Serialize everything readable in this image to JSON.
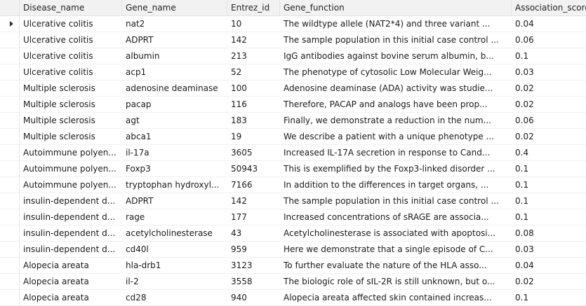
{
  "columns": [
    "Disease_name",
    "Gene_name",
    "Entrez_id",
    "Gene_function",
    "Association_score"
  ],
  "rows": [
    [
      "Ulcerative colitis",
      "nat2",
      "10",
      "The wildtype allele (NAT2*4) and three variant ...",
      "0.04"
    ],
    [
      "Ulcerative colitis",
      "ADPRT",
      "142",
      "The sample population in this initial case control ...",
      "0.06"
    ],
    [
      "Ulcerative colitis",
      "albumin",
      "213",
      "IgG antibodies against bovine serum albumin, b...",
      "0.1"
    ],
    [
      "Ulcerative colitis",
      "acp1",
      "52",
      "The phenotype of cytosolic Low Molecular Weig...",
      "0.03"
    ],
    [
      "Multiple sclerosis",
      "adenosine deaminase",
      "100",
      "Adenosine deaminase (ADA) activity was studie...",
      "0.02"
    ],
    [
      "Multiple sclerosis",
      "pacap",
      "116",
      "Therefore, PACAP and analogs have been prop...",
      "0.02"
    ],
    [
      "Multiple sclerosis",
      "agt",
      "183",
      "Finally, we demonstrate a reduction in the num...",
      "0.06"
    ],
    [
      "Multiple sclerosis",
      "abca1",
      "19",
      "We describe a patient with a unique phenotype ...",
      "0.02"
    ],
    [
      "Autoimmune polyen...",
      "il-17a",
      "3605",
      "Increased IL-17A secretion in response to Cand...",
      "0.4"
    ],
    [
      "Autoimmune polyen...",
      "Foxp3",
      "50943",
      "This is exemplified by the Foxp3-linked disorder ...",
      "0.1"
    ],
    [
      "Autoimmune polyen...",
      "tryptophan hydroxyl...",
      "7166",
      "In addition to the differences in target organs, ...",
      "0.1"
    ],
    [
      "insulin-dependent d...",
      "ADPRT",
      "142",
      "The sample population in this initial case control ...",
      "0.1"
    ],
    [
      "insulin-dependent d...",
      "rage",
      "177",
      "Increased concentrations of sRAGE are associa...",
      "0.1"
    ],
    [
      "insulin-dependent d...",
      "acetylcholinesterase",
      "43",
      "Acetylcholinesterase is associated with apoptosi...",
      "0.08"
    ],
    [
      "insulin-dependent d...",
      "cd40l",
      "959",
      "Here we demonstrate that a single episode of C...",
      "0.03"
    ],
    [
      "Alopecia areata",
      "hla-drb1",
      "3123",
      "To further evaluate the nature of the HLA asso...",
      "0.04"
    ],
    [
      "Alopecia areata",
      "il-2",
      "3558",
      "The biologic role of sIL-2R is still unknown, but o...",
      "0.02"
    ],
    [
      "Alopecia areata",
      "cd28",
      "940",
      "Alopecia areata affected skin contained increas...",
      "0.1"
    ]
  ],
  "selected_row_index": 0,
  "row_indicator_icon": "current-row-arrow-icon"
}
